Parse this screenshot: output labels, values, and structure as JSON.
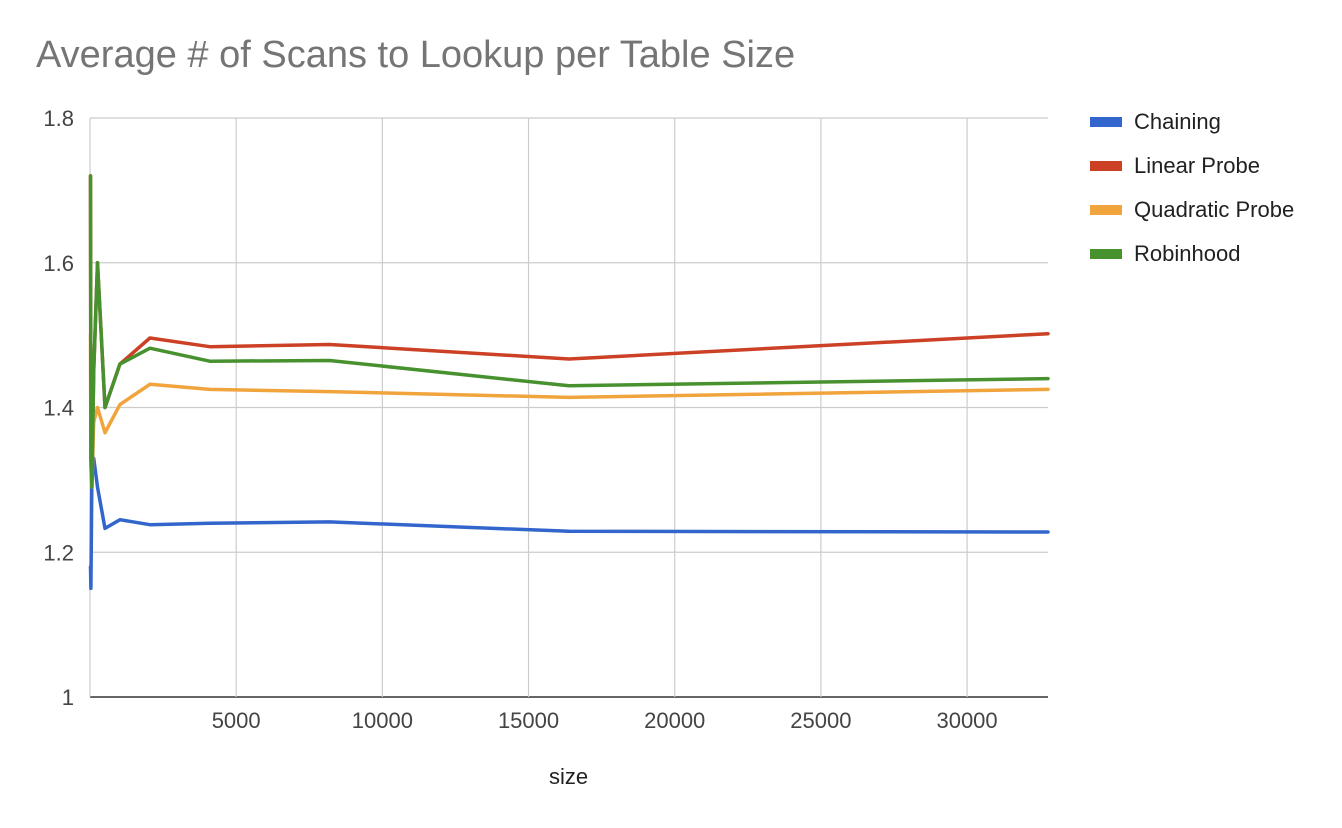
{
  "chart_data": {
    "type": "line",
    "title": "Average # of Scans to Lookup per Table Size",
    "xlabel": "size",
    "ylabel": "",
    "xlim": [
      0,
      32768
    ],
    "ylim": [
      1,
      1.8
    ],
    "yticks": [
      1,
      1.2,
      1.4,
      1.6,
      1.8
    ],
    "ytick_labels": [
      "1",
      "1.2",
      "1.4",
      "1.6",
      "1.8"
    ],
    "xticks": [
      5000,
      10000,
      15000,
      20000,
      25000,
      30000
    ],
    "xtick_labels": [
      "5000",
      "10000",
      "15000",
      "20000",
      "25000",
      "30000"
    ],
    "grid": true,
    "legend_position": "right",
    "x": [
      16,
      32,
      64,
      128,
      256,
      512,
      1024,
      2048,
      4096,
      8192,
      16384,
      32768
    ],
    "series": [
      {
        "name": "Chaining",
        "color": "#3366cc",
        "values": [
          1.18,
          1.15,
          1.31,
          1.33,
          1.29,
          1.233,
          1.245,
          1.238,
          1.24,
          1.242,
          1.229,
          1.228
        ]
      },
      {
        "name": "Linear Probe",
        "color": "#cc4125",
        "values": [
          1.72,
          1.33,
          1.3,
          1.45,
          1.6,
          1.4,
          1.46,
          1.496,
          1.484,
          1.487,
          1.467,
          1.502
        ]
      },
      {
        "name": "Quadratic Probe",
        "color": "#f1a33c",
        "values": [
          1.5,
          1.32,
          1.29,
          1.38,
          1.4,
          1.365,
          1.404,
          1.432,
          1.425,
          1.422,
          1.414,
          1.425
        ]
      },
      {
        "name": "Robinhood",
        "color": "#47912f",
        "values": [
          1.72,
          1.33,
          1.29,
          1.45,
          1.6,
          1.4,
          1.46,
          1.482,
          1.464,
          1.465,
          1.43,
          1.44
        ]
      }
    ]
  }
}
